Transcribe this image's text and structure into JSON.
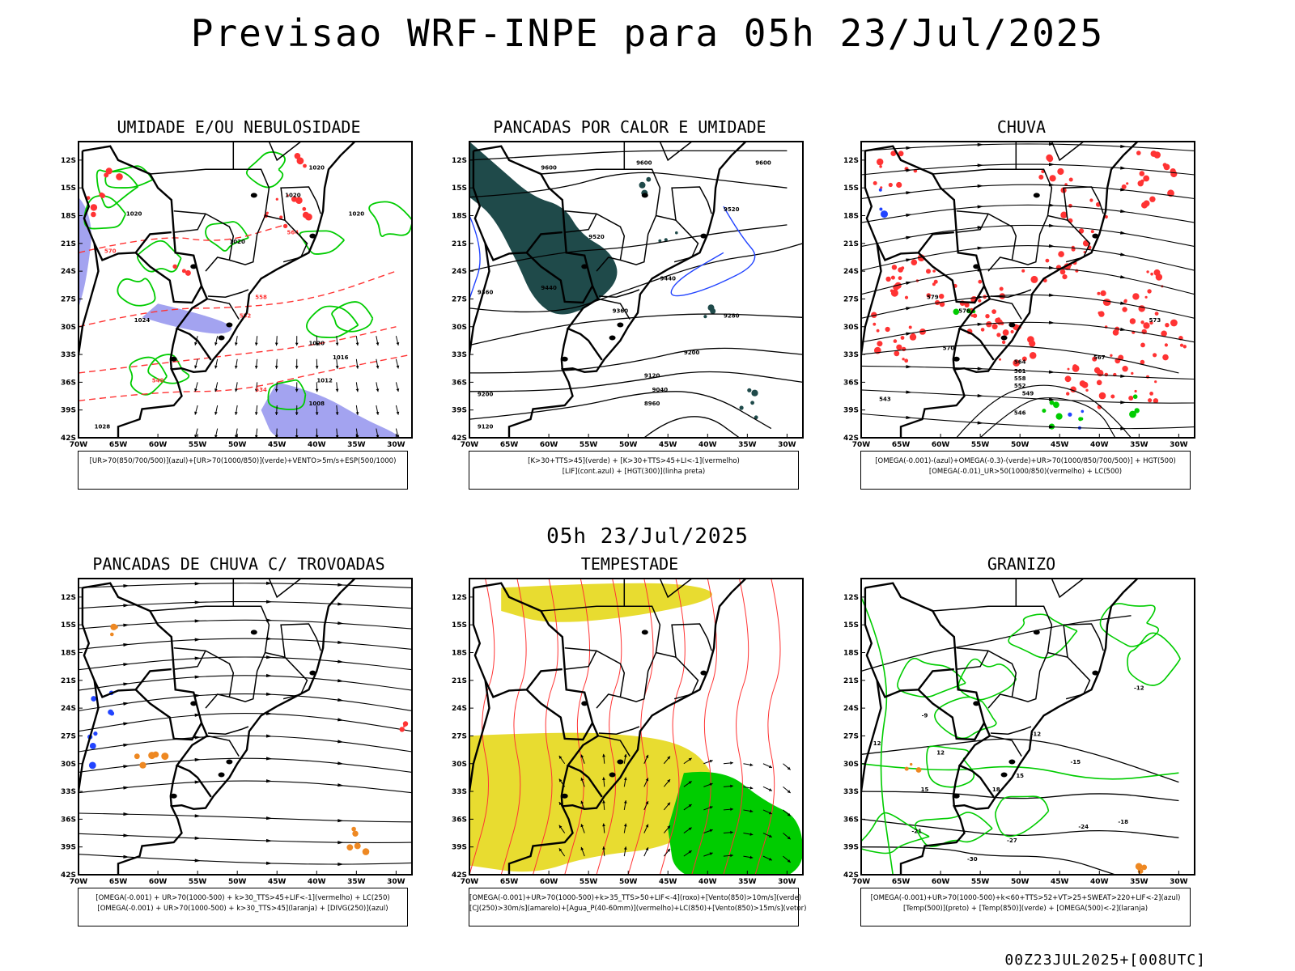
{
  "title": "Previsao WRF-INPE  para 05h 23/Jul/2025",
  "subtitle": "05h 23/Jul/2025",
  "footer": "00Z23JUL2025+[008UTC]",
  "axes": {
    "lat_ticks": [
      "12S",
      "15S",
      "18S",
      "21S",
      "24S",
      "27S",
      "30S",
      "33S",
      "36S",
      "39S",
      "42S"
    ],
    "lon_ticks": [
      "70W",
      "65W",
      "60W",
      "55W",
      "50W",
      "45W",
      "40W",
      "35W",
      "30W"
    ]
  },
  "panels": [
    {
      "title": "UMIDADE E/OU NEBULOSIDADE",
      "legend": [
        "[UR>70(850/700/500)](azul)+[UR>70(1000/850)](verde)+VENTO>5m/s+ESP(500/1000)"
      ],
      "contour_labels": [
        "1020",
        "1020",
        "1020",
        "1020",
        "1020",
        "1020",
        "1020",
        "1024",
        "1016",
        "1016",
        "1012",
        "1008",
        "1028",
        "1018",
        "570",
        "564",
        "558",
        "552",
        "546",
        "540",
        "534"
      ]
    },
    {
      "title": "PANCADAS POR CALOR E UMIDADE",
      "legend": [
        "[K>30+TTS>45](verde) + [K>30+TTS>45+LI<-1](vermelho)",
        "[LIF](cont.azul) + [HGT(300)](linha preta)"
      ],
      "contour_labels": [
        "9600",
        "9600",
        "9600",
        "9520",
        "9520",
        "9440",
        "9440",
        "9360",
        "9360",
        "9280",
        "9200",
        "9200",
        "9120",
        "9120",
        "9040",
        "8960"
      ]
    },
    {
      "title": "CHUVA",
      "legend": [
        "[OMEGA(-0.001)-(azul)+OMEGA(-0.3)-(verde)+UR>70(1000/850/700/500)] + HGT(500)",
        "[OMEGA(-0.01)_UR>50(1000/850)(vermelho) + LC(500)"
      ],
      "contour_labels": [
        "579",
        "576",
        "573",
        "570",
        "567",
        "564",
        "561",
        "558",
        "552",
        "549",
        "546",
        "543"
      ]
    },
    {
      "title": "PANCADAS DE CHUVA C/ TROVOADAS",
      "legend": [
        "[OMEGA(-0.001) + UR>70(1000-500) + k>30_TTS>45+LIF<-1](vermelho) + LC(250)",
        "[OMEGA(-0.001) + UR>70(1000-500) + k>30_TTS>45](laranja) + [DIVG(250)](azul)"
      ],
      "contour_labels": []
    },
    {
      "title": "TEMPESTADE",
      "legend": [
        "[OMEGA(-0.001)+UR>70(1000-500)+k>35_TTS>50+LIF<-4](roxo)+[Vento(850)>10m/s](verde)",
        "[CJ(250)>30m/s](amarelo)+[Agua_P(40-60mm)](vermelho)+LC(850)+[Vento(850)>15m/s](vetor)"
      ],
      "contour_labels": []
    },
    {
      "title": "GRANIZO",
      "legend": [
        "[OMEGA(-0.001)+UR>70(1000-500)+k<60+TTS>52+VT>25+SWEAT>220+LIF<-2](azul)",
        "[Temp(500)](preto) + [Temp(850)](verde) + [OMEGA(500)<-2](laranja)"
      ],
      "contour_labels": [
        "-12",
        "-12",
        "-15",
        "-18",
        "-21",
        "-24",
        "-27",
        "-30",
        "12",
        "15",
        "18",
        "15",
        "12",
        "-9"
      ]
    }
  ],
  "colors": {
    "green": "#00cc00",
    "red": "#ff3333",
    "blue": "#2244ff",
    "lavender": "#9999ee",
    "dark_teal": "#1f4a4a",
    "yellow": "#e8dc30",
    "orange": "#ee8822",
    "black": "#000000"
  }
}
